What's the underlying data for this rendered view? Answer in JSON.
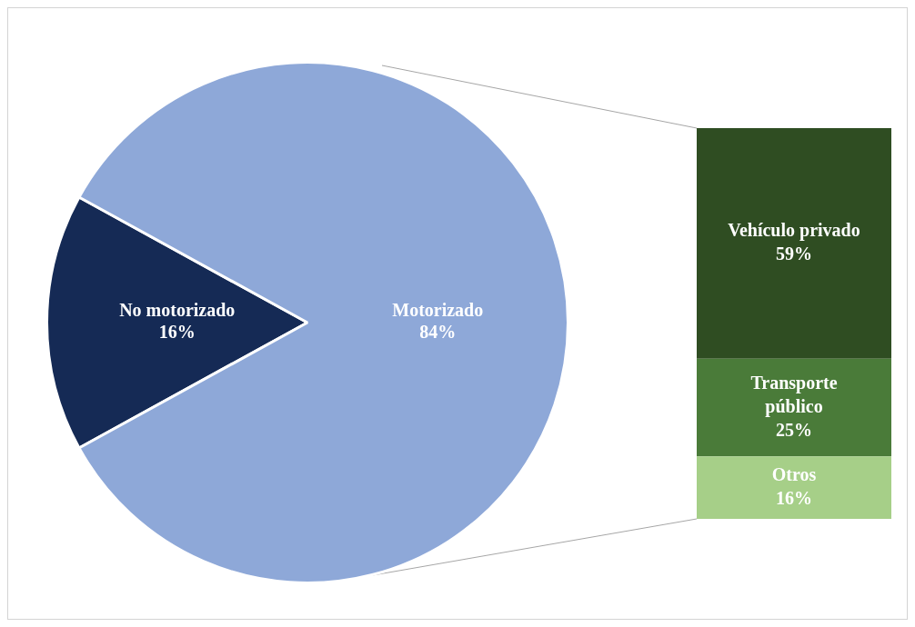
{
  "chart_data": [
    {
      "type": "pie",
      "categories": [
        "No motorizado",
        "Motorizado"
      ],
      "values": [
        16,
        84
      ],
      "colors": [
        "#152a55",
        "#8ea8d8"
      ],
      "value_labels": [
        "16%",
        "84%"
      ]
    },
    {
      "type": "bar",
      "stacked": true,
      "tick_labels": false,
      "ylim": [
        0,
        100
      ],
      "categories": [
        null
      ],
      "series": [
        {
          "name": "Otros",
          "color": "#a6cf88",
          "values": [
            16
          ],
          "value_labels": [
            "16%"
          ]
        },
        {
          "name": "Transporte público",
          "color": "#4a7b39",
          "values": [
            25
          ],
          "value_labels": [
            "25%"
          ]
        },
        {
          "name": "Vehículo privado",
          "color": "#2f4d22",
          "values": [
            59
          ],
          "value_labels": [
            "59%"
          ]
        }
      ]
    }
  ]
}
